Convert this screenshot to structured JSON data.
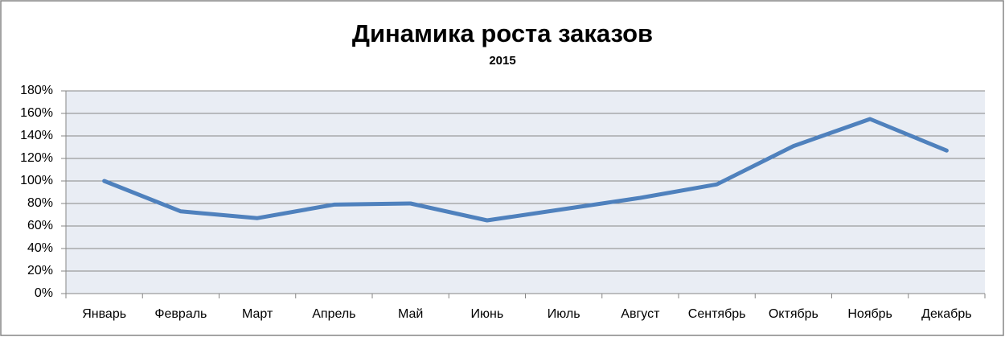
{
  "chart_data": {
    "type": "line",
    "title": "Динамика роста заказов",
    "subtitle": "2015",
    "categories": [
      "Январь",
      "Февраль",
      "Март",
      "Апрель",
      "Май",
      "Июнь",
      "Июль",
      "Август",
      "Сентябрь",
      "Октябрь",
      "Ноябрь",
      "Декабрь"
    ],
    "values": [
      100,
      73,
      67,
      79,
      80,
      65,
      75,
      85,
      97,
      131,
      155,
      127
    ],
    "color": "#4f81bd",
    "ylim": [
      0,
      180
    ],
    "yticks": [
      {
        "value": 0,
        "label": "0%"
      },
      {
        "value": 20,
        "label": "20%"
      },
      {
        "value": 40,
        "label": "40%"
      },
      {
        "value": 60,
        "label": "60%"
      },
      {
        "value": 80,
        "label": "80%"
      },
      {
        "value": 100,
        "label": "100%"
      },
      {
        "value": 120,
        "label": "120%"
      },
      {
        "value": 140,
        "label": "140%"
      },
      {
        "value": 160,
        "label": "160%"
      },
      {
        "value": 180,
        "label": "180%"
      }
    ],
    "grid": true
  }
}
